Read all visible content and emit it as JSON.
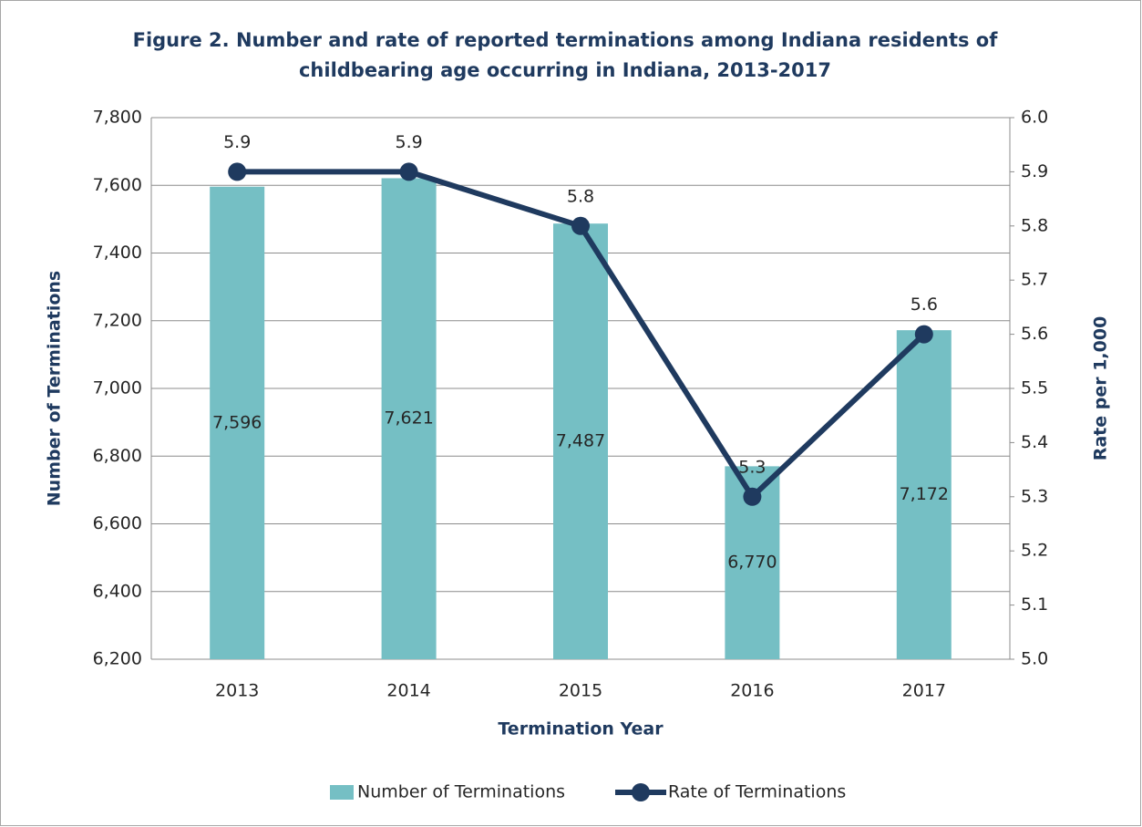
{
  "chart_data": {
    "type": "bar_line",
    "title": "Figure 2. Number and rate of reported terminations among Indiana residents of childbearing age occurring in Indiana, 2013-2017",
    "x_label": "Termination Year",
    "y_label": "Number of Terminations",
    "y2_label": "Rate per 1,000",
    "categories": [
      "2013",
      "2014",
      "2015",
      "2016",
      "2017"
    ],
    "series": [
      {
        "name": "Number of Terminations",
        "type": "bar",
        "color": "#75bfc4",
        "axis": "y",
        "values": [
          7596,
          7621,
          7487,
          6770,
          7172
        ],
        "value_labels": [
          "7,596",
          "7,621",
          "7,487",
          "6,770",
          "7,172"
        ]
      },
      {
        "name": "Rate of Terminations",
        "type": "line",
        "color": "#1f3a5f",
        "axis": "y2",
        "values": [
          5.9,
          5.9,
          5.8,
          5.3,
          5.6
        ]
      }
    ],
    "ylim": [
      6200,
      7800
    ],
    "yticks": [
      {
        "value": 6200,
        "label": "6,200"
      },
      {
        "value": 6400,
        "label": "6,400"
      },
      {
        "value": 6600,
        "label": "6,600"
      },
      {
        "value": 6800,
        "label": "6,800"
      },
      {
        "value": 7000,
        "label": "7,000"
      },
      {
        "value": 7200,
        "label": "7,200"
      },
      {
        "value": 7400,
        "label": "7,400"
      },
      {
        "value": 7600,
        "label": "7,600"
      },
      {
        "value": 7800,
        "label": "7,800"
      }
    ],
    "y2lim": [
      5.0,
      6.0
    ],
    "y2ticks": [
      {
        "value": 5.0,
        "label": "5.0"
      },
      5.1,
      5.2,
      5.3,
      5.4,
      5.5,
      5.6,
      5.7,
      5.8,
      5.9,
      {
        "value": 6.0,
        "label": "6.0"
      }
    ],
    "grid": true,
    "legend": "bottom"
  }
}
